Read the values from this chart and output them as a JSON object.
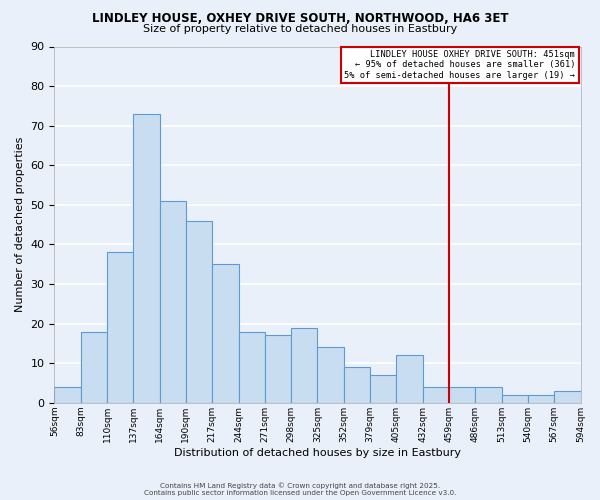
{
  "title": "LINDLEY HOUSE, OXHEY DRIVE SOUTH, NORTHWOOD, HA6 3ET",
  "subtitle": "Size of property relative to detached houses in Eastbury",
  "xlabel": "Distribution of detached houses by size in Eastbury",
  "ylabel": "Number of detached properties",
  "bin_labels": [
    "56sqm",
    "83sqm",
    "110sqm",
    "137sqm",
    "164sqm",
    "190sqm",
    "217sqm",
    "244sqm",
    "271sqm",
    "298sqm",
    "325sqm",
    "352sqm",
    "379sqm",
    "405sqm",
    "432sqm",
    "459sqm",
    "486sqm",
    "513sqm",
    "540sqm",
    "567sqm",
    "594sqm"
  ],
  "bar_heights": [
    4,
    18,
    38,
    73,
    51,
    46,
    35,
    18,
    17,
    19,
    14,
    9,
    7,
    12,
    4,
    4,
    4,
    2,
    2,
    3
  ],
  "bar_color": "#c9ddf0",
  "bar_edgecolor": "#5b9bd5",
  "vline_color": "#cc0000",
  "legend_title": "LINDLEY HOUSE OXHEY DRIVE SOUTH: 451sqm",
  "legend_line1": "← 95% of detached houses are smaller (361)",
  "legend_line2": "5% of semi-detached houses are larger (19) →",
  "legend_box_color": "#cc0000",
  "ylim": [
    0,
    90
  ],
  "yticks": [
    0,
    10,
    20,
    30,
    40,
    50,
    60,
    70,
    80,
    90
  ],
  "background_color": "#eaf0f9",
  "grid_color": "#ffffff",
  "footer1": "Contains HM Land Registry data © Crown copyright and database right 2025.",
  "footer2": "Contains public sector information licensed under the Open Government Licence v3.0."
}
